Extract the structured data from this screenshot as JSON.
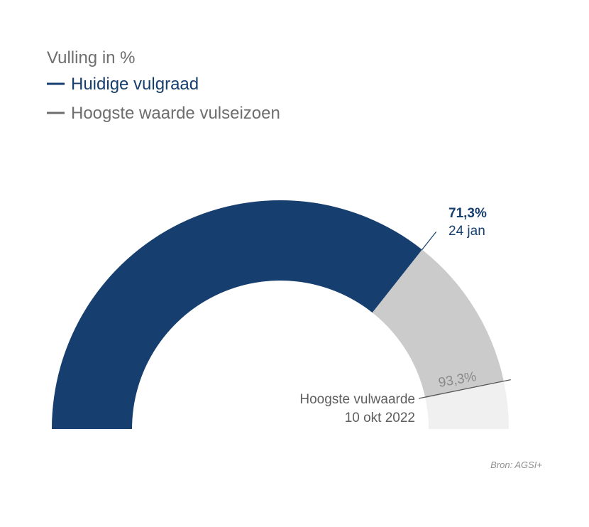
{
  "header": {
    "subtitle": "Vulling in %"
  },
  "legend": [
    {
      "label": "Huidige vulgraad",
      "color": "#163f6f"
    },
    {
      "label": "Hoogste waarde vulseizoen",
      "color": "#6e6e6e"
    }
  ],
  "chart_data": {
    "type": "gauge",
    "unit": "%",
    "range": [
      0,
      100
    ],
    "series": [
      {
        "name": "Huidige vulgraad",
        "value": 71.3,
        "label": "71,3%",
        "date": "24 jan",
        "color": "#163f6f"
      },
      {
        "name": "Hoogste waarde vulseizoen",
        "value": 93.3,
        "label": "93,3%",
        "caption_lines": [
          "Hoogste vulwaarde",
          "10 okt 2022"
        ],
        "color": "#cbcbcb"
      }
    ],
    "track_color": "#f0f0f0"
  },
  "footer": {
    "source": "Bron: AGSI+"
  }
}
